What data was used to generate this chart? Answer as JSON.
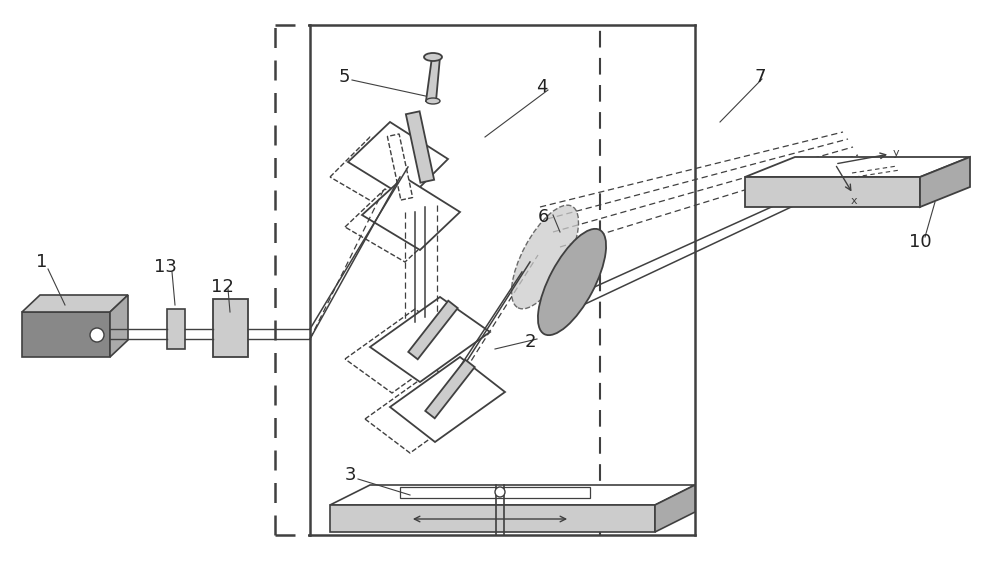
{
  "bg_color": "#ffffff",
  "line_color": "#404040",
  "gray_fill": "#aaaaaa",
  "light_gray": "#cccccc",
  "dark_gray": "#888888",
  "label_color": "#222222",
  "figsize": [
    10.0,
    5.67
  ],
  "dpi": 100
}
